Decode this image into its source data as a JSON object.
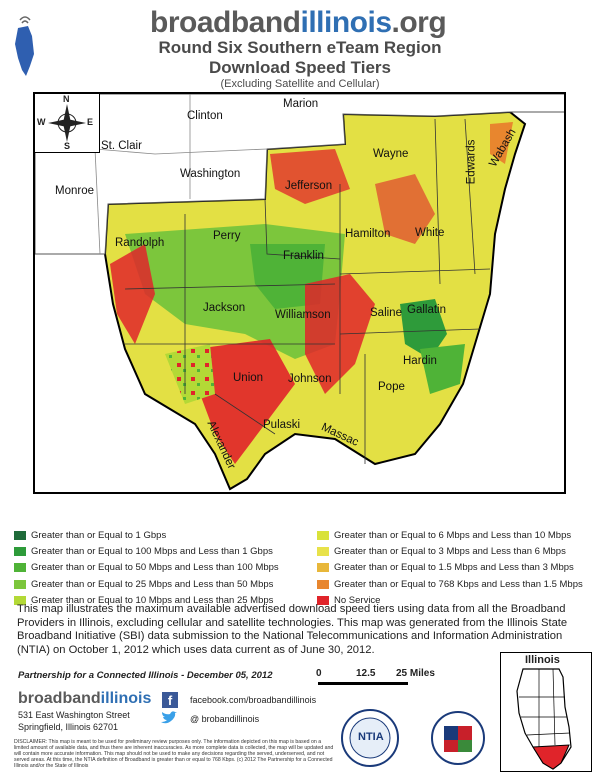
{
  "header": {
    "brand_gray": "broadband",
    "brand_blue": "illinois",
    "brand_suffix": ".org",
    "title_line1": "Round Six Southern eTeam Region",
    "title_line2": "Download Speed Tiers",
    "subtitle": "(Excluding Satellite and Cellular)"
  },
  "compass": {
    "n": "N",
    "s": "S",
    "e": "E",
    "w": "W"
  },
  "map": {
    "outside_counties": [
      "Clinton",
      "Marion",
      "St. Clair",
      "Washington",
      "Monroe"
    ],
    "counties": [
      "Jefferson",
      "Wayne",
      "Edwards",
      "Wabash",
      "Randolph",
      "Perry",
      "Franklin",
      "Hamilton",
      "White",
      "Jackson",
      "Williamson",
      "Saline",
      "Gallatin",
      "Hardin",
      "Union",
      "Johnson",
      "Pope",
      "Pulaski",
      "Massac",
      "Alexander"
    ]
  },
  "legend": {
    "left": [
      {
        "label": "Greater than or Equal to 1 Gbps",
        "color": "#1f6b3a"
      },
      {
        "label": "Greater than or Equal to 100 Mbps and Less than 1 Gbps",
        "color": "#2e9b3a"
      },
      {
        "label": "Greater than or Equal to 50 Mbps and Less than 100 Mbps",
        "color": "#4fb337"
      },
      {
        "label": "Greater than or Equal to 25 Mbps and Less than 50 Mbps",
        "color": "#7cc63c"
      },
      {
        "label": "Greater than or Equal to 10 Mbps and Less than 25 Mbps",
        "color": "#b3d936"
      }
    ],
    "right": [
      {
        "label": "Greater than or Equal to 6 Mbps and Less than 10 Mbps",
        "color": "#d9e23a"
      },
      {
        "label": "Greater than or Equal to 3 Mbps and Less than 6 Mbps",
        "color": "#e8e24a"
      },
      {
        "label": "Greater than or Equal to 1.5 Mbps and Less than 3 Mbps",
        "color": "#e8b73a"
      },
      {
        "label": "Greater than or Equal to 768 Kbps and Less than 1.5 Mbps",
        "color": "#e8862e"
      },
      {
        "label": "No Service",
        "color": "#e0242a"
      }
    ]
  },
  "description": "This map illustrates the maximum available advertised download speed tiers using data from all the Broadband Providers in Illinois, excluding cellular and satellite technologies. This map was generated from the Illinois State Broadband Initiative (SBI) data submission to the National Telecommunications and Information Administration (NTIA) on October 1, 2012 which uses data current as of June 30, 2012.",
  "footer": {
    "partnership": "Partnership for a Connected Illinois -  December 05, 2012",
    "scale_0": "0",
    "scale_mid": "12.5",
    "scale_end": "25 Miles",
    "address1": "531 East Washington Street",
    "address2": "Springfield, Illinois 62701",
    "facebook": "facebook.com/broadbandillinois",
    "twitter": "@ brobandillinois",
    "ntia": "NTIA",
    "inset_title": "Illinois",
    "disclaimer": "DISCLAIMER: This map is meant to be used for preliminary review purposes only. The information depicted on this map is based on a limited amount of available data, and thus there are inherent inaccuracies. As more complete data is collected, the map will be updated and will contain more accurate information. This map should not be used to make any decisions regarding the served, underserved, and not served areas. At this time, the NTIA definition of Broadband is greater than or equal to 768 Kbps. (c) 2012 The Partnership for a Connected Illinois and/or the State of Illinois"
  }
}
